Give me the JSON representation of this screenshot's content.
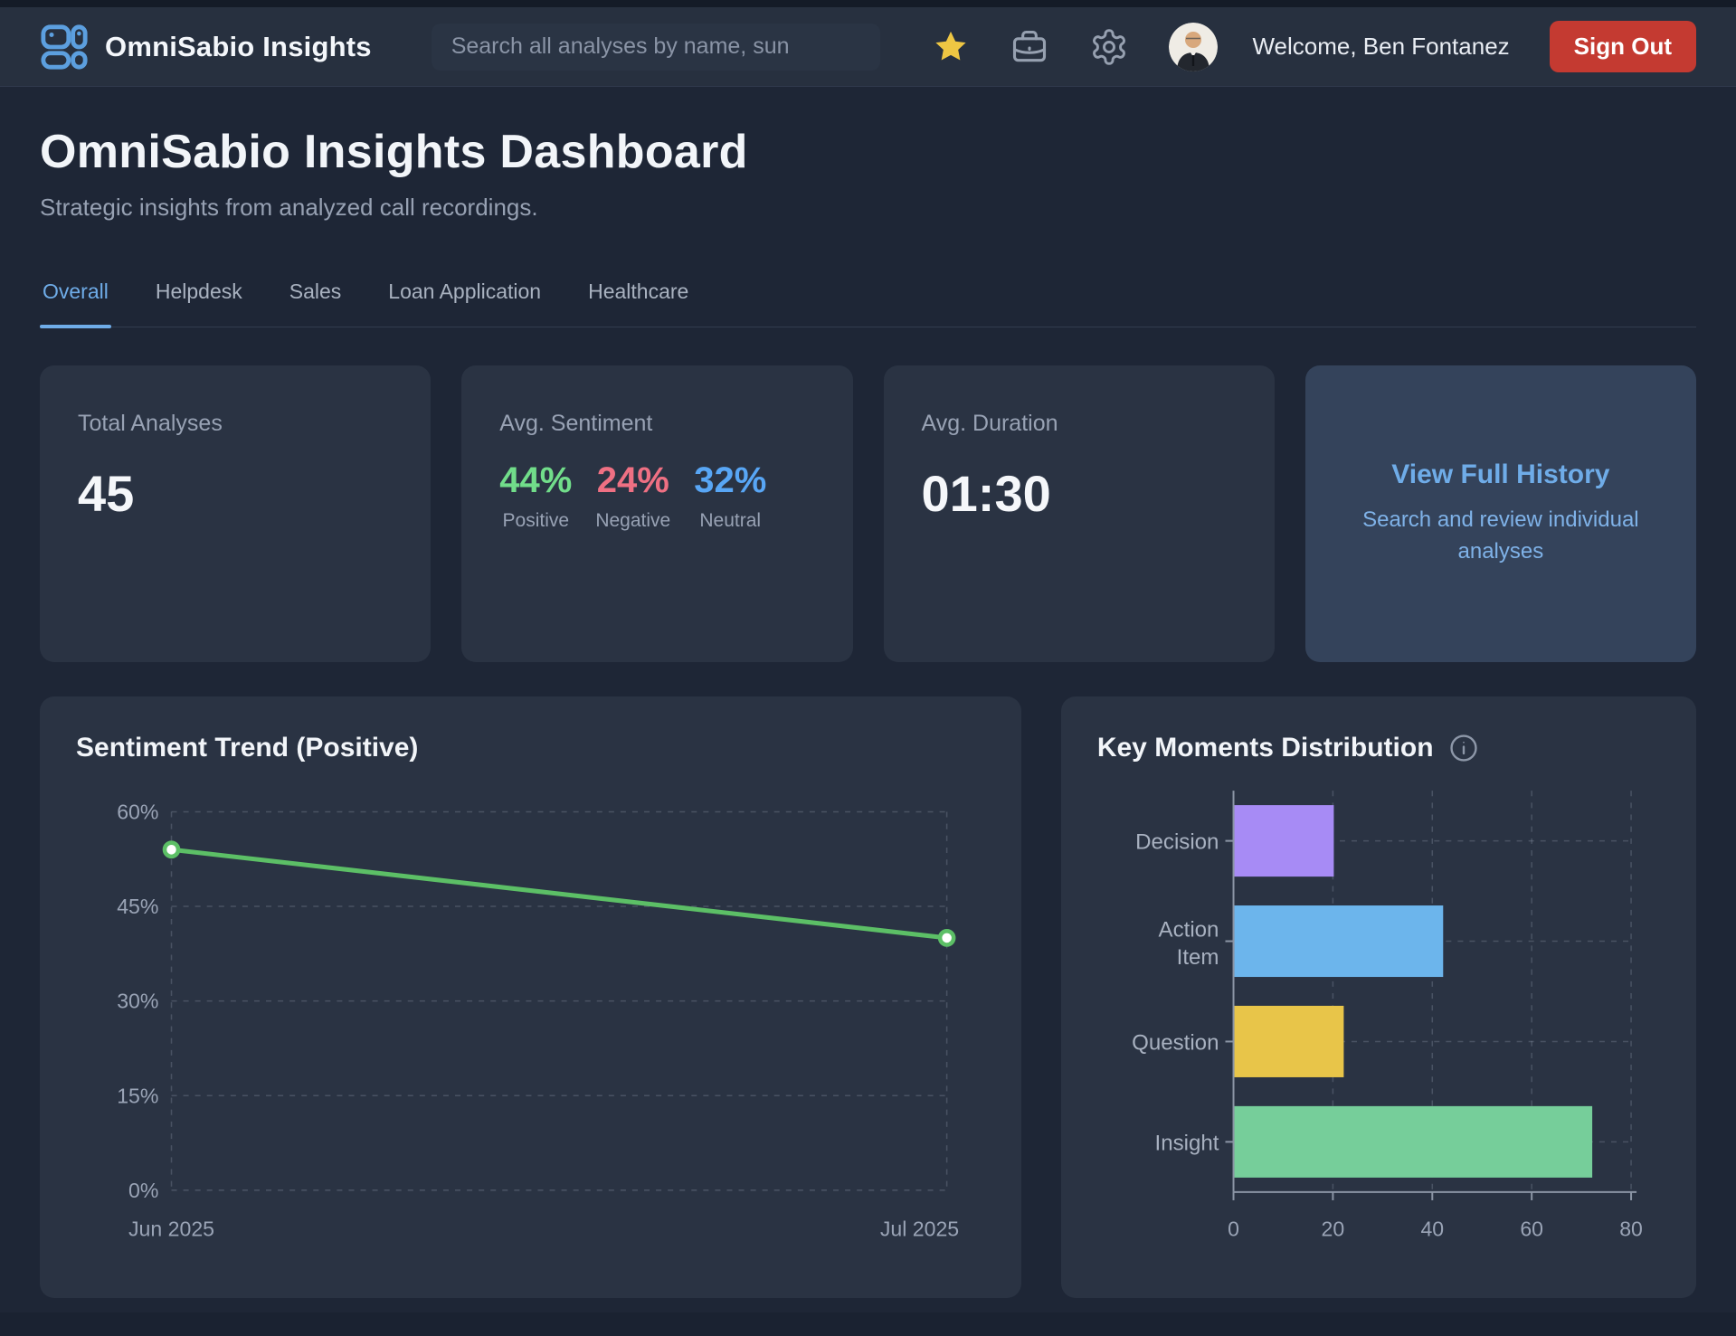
{
  "topbar": {
    "brand": "OmniSabio Insights",
    "search_placeholder": "Search all analyses by name, sun",
    "welcome": "Welcome, Ben Fontanez",
    "sign_out": "Sign Out"
  },
  "header": {
    "title": "OmniSabio Insights Dashboard",
    "subtitle": "Strategic insights from analyzed call recordings."
  },
  "tabs": [
    {
      "label": "Overall",
      "active": true
    },
    {
      "label": "Helpdesk",
      "active": false
    },
    {
      "label": "Sales",
      "active": false
    },
    {
      "label": "Loan Application",
      "active": false
    },
    {
      "label": "Healthcare",
      "active": false
    }
  ],
  "stats": {
    "total": {
      "label": "Total Analyses",
      "value": "45"
    },
    "sentiment": {
      "label": "Avg. Sentiment",
      "items": [
        {
          "value": "44%",
          "sublabel": "Positive",
          "color": "#71dd8a"
        },
        {
          "value": "24%",
          "sublabel": "Negative",
          "color": "#ef7083"
        },
        {
          "value": "32%",
          "sublabel": "Neutral",
          "color": "#58a6f5"
        }
      ]
    },
    "duration": {
      "label": "Avg. Duration",
      "value": "01:30"
    },
    "history": {
      "title": "View Full History",
      "subtitle": "Search and review individual analyses",
      "accent": "#6face8"
    }
  },
  "colors": {
    "accent_blue": "#6face8",
    "sign_out_red": "#c43a31",
    "star_gold": "#eec643",
    "card_bg": "#2a3343",
    "page_bg": "#1e2636",
    "topbar_bg": "#27303f"
  },
  "chart_data": [
    {
      "type": "line",
      "title": "Sentiment Trend (Positive)",
      "x": [
        "Jun 2025",
        "Jul 2025"
      ],
      "series": [
        {
          "name": "Positive",
          "values": [
            54,
            40
          ]
        }
      ],
      "ylim": [
        0,
        60
      ],
      "yticks": [
        0,
        15,
        30,
        45,
        60
      ],
      "ytick_suffix": "%",
      "grid": "dashed",
      "color": "#5cbf66",
      "legend": "none"
    },
    {
      "type": "bar",
      "orientation": "horizontal",
      "title": "Key Moments Distribution",
      "categories": [
        "Decision",
        "Action Item",
        "Question",
        "Insight"
      ],
      "values": [
        20,
        42,
        22,
        72
      ],
      "colors": [
        "#a78bf5",
        "#6cb5ec",
        "#e8c549",
        "#76ce9a"
      ],
      "xlim": [
        0,
        80
      ],
      "xticks": [
        0,
        20,
        40,
        60,
        80
      ],
      "grid": "dashed",
      "legend": "none"
    }
  ]
}
